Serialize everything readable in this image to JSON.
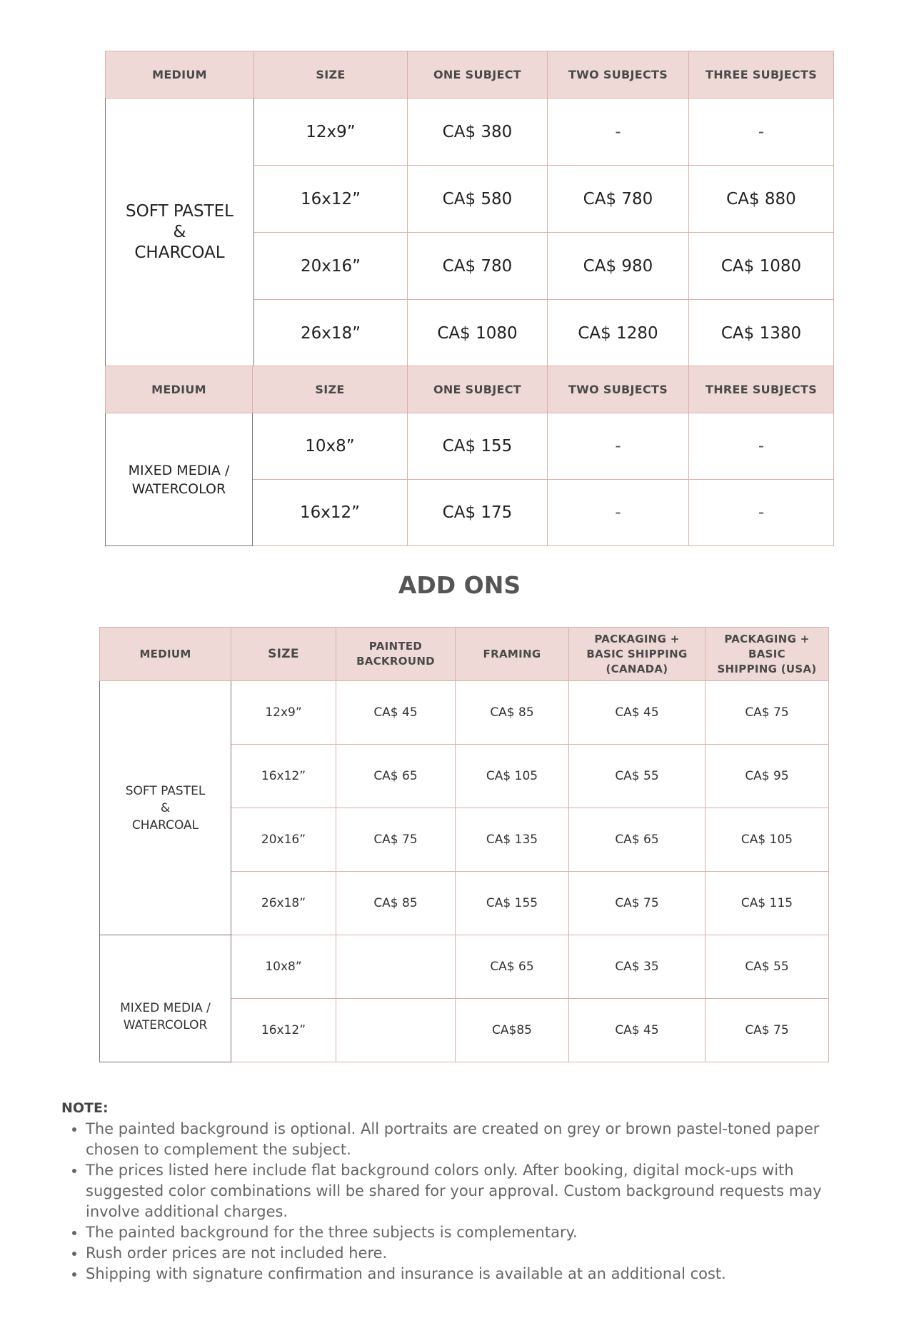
{
  "table1": {
    "headers": [
      "MEDIUM",
      "SIZE",
      "ONE SUBJECT",
      "TWO SUBJECTS",
      "THREE SUBJECTS"
    ],
    "medium_lines": [
      "SOFT PASTEL",
      "&",
      "CHARCOAL"
    ],
    "rows": [
      [
        "12x9”",
        "CA$ 380",
        "-",
        "-"
      ],
      [
        "16x12”",
        "CA$ 580",
        "CA$ 780",
        "CA$ 880"
      ],
      [
        "20x16”",
        "CA$ 780",
        "CA$ 980",
        "CA$ 1080"
      ],
      [
        "26x18”",
        "CA$ 1080",
        "CA$ 1280",
        "CA$ 1380"
      ]
    ]
  },
  "table2": {
    "headers": [
      "MEDIUM",
      "SIZE",
      "ONE SUBJECT",
      "TWO SUBJECTS",
      "THREE SUBJECTS"
    ],
    "medium_lines": [
      "MIXED MEDIA /",
      "WATERCOLOR"
    ],
    "rows": [
      [
        "10x8”",
        "CA$ 155",
        "-",
        "-"
      ],
      [
        "16x12”",
        "CA$ 175",
        "-",
        "-"
      ]
    ]
  },
  "addons": {
    "title": "ADD ONS",
    "headers": [
      "MEDIUM",
      "SIZE",
      "PAINTED BACKROUND",
      "FRAMING",
      "PACKAGING + BASIC SHIPPING (CANADA)",
      "PACKAGING + BASIC SHIPPING (USA)"
    ],
    "group1_medium": [
      "SOFT PASTEL",
      "&",
      "CHARCOAL"
    ],
    "group1_rows": [
      [
        "12x9”",
        "CA$ 45",
        "CA$ 85",
        "CA$ 45",
        "CA$ 75"
      ],
      [
        "16x12”",
        "CA$ 65",
        "CA$ 105",
        "CA$ 55",
        "CA$ 95"
      ],
      [
        "20x16”",
        "CA$ 75",
        "CA$ 135",
        "CA$ 65",
        "CA$ 105"
      ],
      [
        "26x18”",
        "CA$ 85",
        "CA$ 155",
        "CA$ 75",
        "CA$ 115"
      ]
    ],
    "group2_medium": [
      "MIXED MEDIA /",
      "WATERCOLOR"
    ],
    "group2_rows": [
      [
        "10x8”",
        "",
        "CA$ 65",
        "CA$ 35",
        "CA$ 55"
      ],
      [
        "16x12”",
        "",
        "CA$85",
        "CA$ 45",
        "CA$ 75"
      ]
    ]
  },
  "notes": {
    "title": "NOTE:",
    "items": [
      "The painted background is optional. All portraits are created on grey or brown pastel-toned paper chosen to complement the subject.",
      "The prices listed here include flat background colors only. After booking, digital mock-ups with suggested color combinations will be shared for your approval. Custom background requests may involve additional charges.",
      "The painted background for the three subjects is complementary.",
      "Rush order prices are not included here.",
      "Shipping with signature confirmation and insurance is available at an additional cost."
    ]
  },
  "colors": {
    "header_bg": "#efd9d7",
    "border": "#dcb0a8",
    "text": "#222222"
  }
}
